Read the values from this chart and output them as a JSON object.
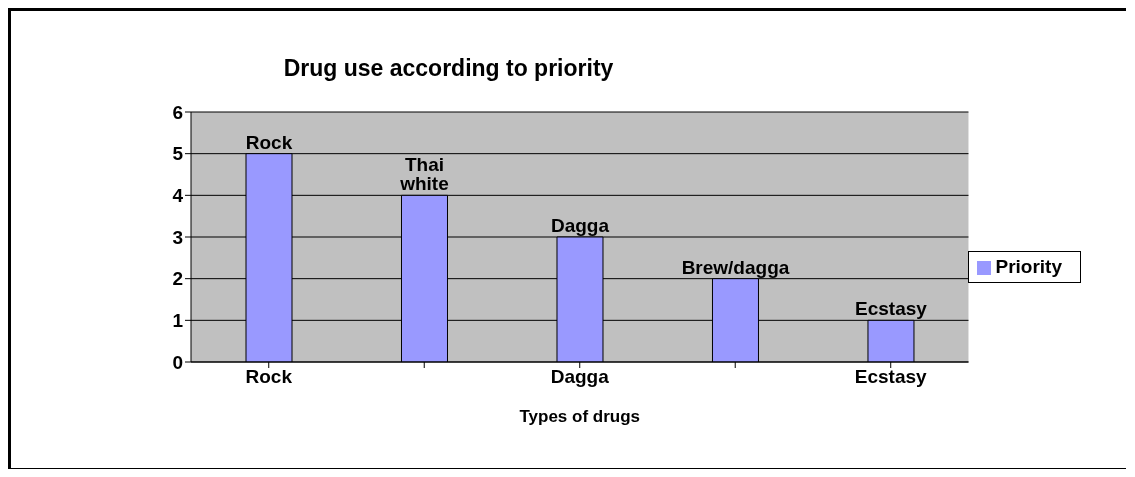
{
  "chart_data": {
    "type": "bar",
    "title": "Drug use according to priority",
    "xlabel": "Types of drugs",
    "categories": [
      "Rock",
      null,
      "Dagga",
      null,
      "Ecstasy"
    ],
    "series": [
      {
        "name": "Priority",
        "color": "#9999ff",
        "values": [
          5,
          4,
          3,
          2,
          1
        ],
        "value_labels": [
          "Rock",
          "Thai white",
          "Dagga",
          "Brew/dagga",
          "Ecstasy"
        ]
      }
    ],
    "ylim": [
      0,
      6
    ],
    "yticks": [
      0,
      1,
      2,
      3,
      4,
      5,
      6
    ],
    "grid": "y",
    "legend": "right"
  }
}
